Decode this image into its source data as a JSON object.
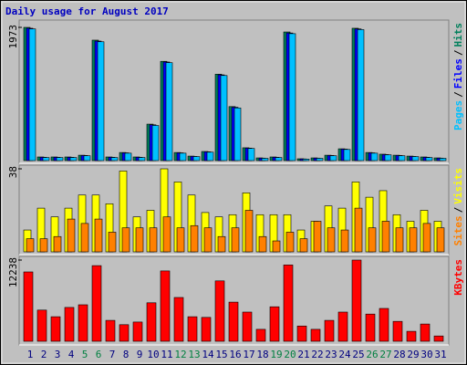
{
  "chart_data": {
    "type": "bar",
    "title": "Daily usage for August 2017",
    "categories": [
      "1",
      "2",
      "3",
      "4",
      "5",
      "6",
      "7",
      "8",
      "9",
      "10",
      "11",
      "12",
      "13",
      "14",
      "15",
      "16",
      "17",
      "18",
      "19",
      "20",
      "21",
      "22",
      "23",
      "24",
      "25",
      "26",
      "27",
      "28",
      "29",
      "30",
      "31"
    ],
    "weekends": [
      "5",
      "6",
      "12",
      "13",
      "19",
      "20",
      "26",
      "27"
    ],
    "weekend_color": "#008040",
    "weekday_color": "#000080",
    "separator": "/",
    "panels": [
      {
        "ylim": [
          0,
          1973
        ],
        "yticks": [
          1973
        ],
        "series": [
          {
            "name": "Hits",
            "color": "#00805c",
            "values": [
              1973,
              54,
              54,
              54,
              80,
              1784,
              54,
              120,
              54,
              540,
              1470,
              120,
              67,
              135,
              1280,
              800,
              190,
              40,
              54,
              1905,
              27,
              40,
              80,
              175,
              1960,
              120,
              95,
              80,
              67,
              54,
              40
            ]
          },
          {
            "name": "Files",
            "color": "#0000ff",
            "values": [
              1960,
              50,
              50,
              50,
              76,
              1770,
              50,
              115,
              50,
              530,
              1460,
              115,
              63,
              130,
              1270,
              790,
              185,
              37,
              50,
              1890,
              25,
              37,
              76,
              170,
              1950,
              115,
              90,
              76,
              63,
              50,
              37
            ]
          },
          {
            "name": "Pages",
            "color": "#00c0ff",
            "values": [
              1950,
              46,
              46,
              46,
              72,
              1760,
              46,
              110,
              46,
              520,
              1450,
              110,
              60,
              125,
              1260,
              780,
              180,
              34,
              46,
              1880,
              22,
              34,
              72,
              165,
              1940,
              110,
              86,
              72,
              60,
              46,
              34
            ]
          }
        ]
      },
      {
        "ylim": [
          0,
          38
        ],
        "yticks": [
          38
        ],
        "series": [
          {
            "name": "Visits",
            "color": "#ffff00",
            "values": [
              10,
              20,
              16,
              20,
              26,
              26,
              22,
              37,
              16,
              19,
              38,
              32,
              26,
              18,
              16,
              17,
              27,
              17,
              17,
              17,
              10,
              14,
              21,
              20,
              32,
              25,
              28,
              17,
              14,
              19,
              14
            ]
          },
          {
            "name": "Sites",
            "color": "#ff8000",
            "values": [
              6,
              6,
              7,
              15,
              13,
              15,
              9,
              11,
              11,
              11,
              16,
              11,
              12,
              11,
              7,
              11,
              19,
              7,
              5,
              9,
              6,
              14,
              11,
              10,
              20,
              11,
              14,
              11,
              11,
              13,
              11
            ]
          }
        ]
      },
      {
        "ylim": [
          0,
          12238
        ],
        "yticks": [
          12238
        ],
        "series": [
          {
            "name": "KBytes",
            "color": "#ff0000",
            "values": [
              10450,
              4700,
              3700,
              5100,
              5500,
              11400,
              3150,
              2500,
              2900,
              5800,
              10600,
              6600,
              3700,
              3600,
              9100,
              5900,
              4400,
              1800,
              5200,
              11500,
              2300,
              1800,
              3150,
              4400,
              12238,
              4100,
              4950,
              3000,
              1500,
              2600,
              800
            ]
          }
        ]
      }
    ]
  }
}
